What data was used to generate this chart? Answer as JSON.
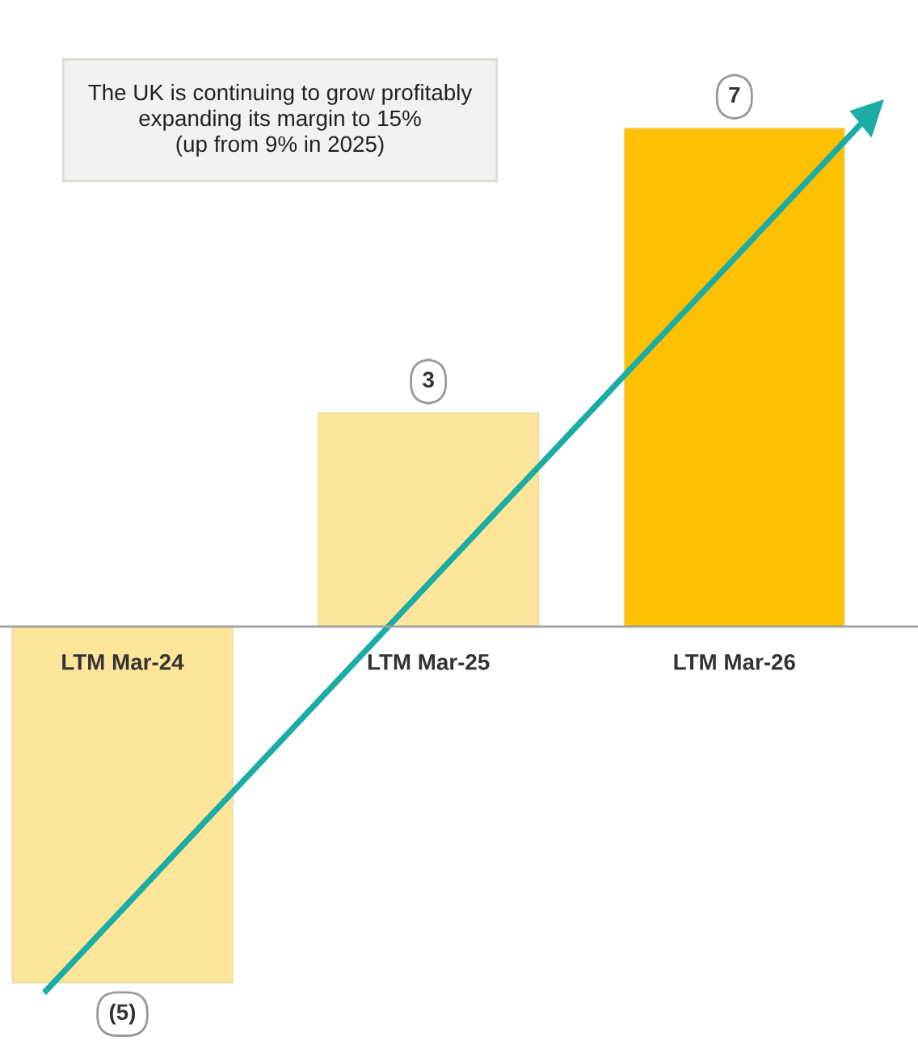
{
  "chart_data": {
    "type": "bar",
    "categories": [
      "LTM Mar-24",
      "LTM Mar-25",
      "LTM Mar-26"
    ],
    "values": [
      -5,
      3,
      7
    ],
    "colors": [
      "#fde59a",
      "#fde59a",
      "#ffc000"
    ],
    "value_labels": [
      "(5)",
      "3",
      "7"
    ],
    "annotations": [
      "The UK is continuing to grow profitably\nexpanding its margin to 15%\n(up from 9% in 2025)"
    ]
  }
}
